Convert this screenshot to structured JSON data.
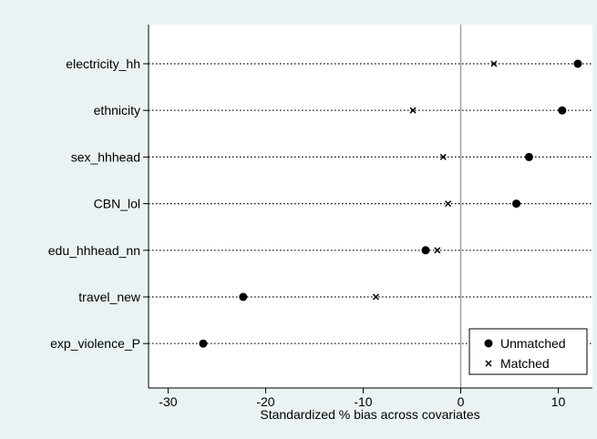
{
  "chart_data": {
    "type": "scatter",
    "xlabel": "Standardized % bias across covariates",
    "xlim": [
      -32,
      13.5
    ],
    "xticks": [
      -30,
      -20,
      -10,
      0,
      10
    ],
    "xtick_labels": [
      "-30",
      "-20",
      "-10",
      "0",
      "10"
    ],
    "reference_line_x": 0,
    "categories": [
      "electricity_hh",
      "ethnicity",
      "sex_hhhead",
      "CBN_lol",
      "edu_hhhead_nn",
      "travel_new",
      "exp_violence_P"
    ],
    "series": [
      {
        "name": "Unmatched",
        "marker": "filled-circle",
        "values": [
          12.0,
          10.4,
          7.0,
          5.7,
          -3.6,
          -22.3,
          -26.4
        ]
      },
      {
        "name": "Matched",
        "marker": "x",
        "values": [
          3.4,
          -4.9,
          -1.8,
          -1.3,
          -2.4,
          -8.7,
          null
        ]
      }
    ],
    "legend_position": "bottom-right",
    "colors": {
      "background": "#eaf2f3",
      "plot_area": "#ffffff",
      "marker": "#000000",
      "reference_line": "#a0a0a0"
    }
  }
}
